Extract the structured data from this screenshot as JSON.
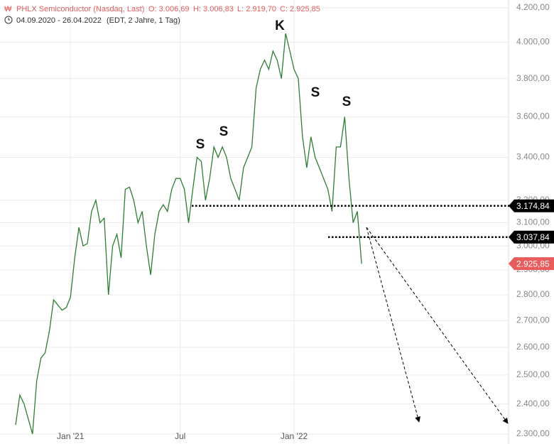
{
  "chart_data": {
    "type": "line",
    "title": "PHLX Semiconductor (Nasdaq, Last)",
    "ohlc_header": [
      "O: 3.006,69",
      "H: 3.006,83",
      "L: 2.919,70",
      "C: 2.925,85"
    ],
    "date_range": "04.09.2020 - 26.04.2022",
    "range_note": "(EDT, 2 Jahre, 1 Tag)",
    "categories": [
      null,
      null,
      null,
      null,
      null,
      null,
      null,
      null,
      null,
      null,
      null,
      null,
      null,
      "Jan '21",
      null,
      null,
      null,
      null,
      null,
      null,
      null,
      null,
      null,
      null,
      null,
      null,
      null,
      null,
      null,
      null,
      null,
      null,
      null,
      null,
      null,
      null,
      null,
      null,
      null,
      "Jul",
      null,
      null,
      null,
      null,
      null,
      null,
      null,
      null,
      null,
      null,
      null,
      null,
      null,
      null,
      null,
      null,
      null,
      null,
      null,
      null,
      null,
      null,
      null,
      null,
      null,
      null,
      "Jan '22",
      null,
      null,
      null,
      null,
      null,
      null,
      null,
      null,
      null,
      null,
      null,
      null,
      null,
      null,
      null,
      null
    ],
    "series": [
      {
        "name": "PHLX Semiconductor",
        "color": "#2e7d32",
        "values": [
          2330,
          2430,
          2400,
          2350,
          2300,
          2480,
          2560,
          2580,
          2660,
          2780,
          2760,
          2740,
          2750,
          2790,
          2950,
          3080,
          3000,
          3010,
          3150,
          3200,
          3100,
          3120,
          2800,
          3000,
          3050,
          2950,
          3250,
          3260,
          3200,
          3100,
          3150,
          3000,
          2880,
          3050,
          3150,
          3180,
          3150,
          3250,
          3300,
          3300,
          3250,
          3100,
          3250,
          3400,
          3380,
          3200,
          3300,
          3450,
          3400,
          3450,
          3400,
          3300,
          3250,
          3200,
          3350,
          3400,
          3450,
          3750,
          3850,
          3900,
          3850,
          3950,
          3900,
          3800,
          4050,
          3950,
          3850,
          3800,
          3500,
          3350,
          3500,
          3400,
          3350,
          3300,
          3250,
          3150,
          3450,
          3450,
          3600,
          3300,
          3100,
          3150,
          2925.85
        ]
      }
    ],
    "last_label": "2.925,85",
    "levels": [
      {
        "value": 3174.84,
        "label": "3.174,84"
      },
      {
        "value": 3037.84,
        "label": "3.037,84"
      }
    ],
    "annotations": [
      "S",
      "S",
      "K",
      "S",
      "S"
    ],
    "ylim": [
      2268,
      4246
    ],
    "log_scale": true,
    "yticks": [
      {
        "value": 2300,
        "label": "2.300,00"
      },
      {
        "value": 2400,
        "label": "2.400,00"
      },
      {
        "value": 2500,
        "label": "2.500,00"
      },
      {
        "value": 2600,
        "label": "2.600,00"
      },
      {
        "value": 2700,
        "label": "2.700,00"
      },
      {
        "value": 2800,
        "label": "2.800,00"
      },
      {
        "value": 2900,
        "label": "2.900,00"
      },
      {
        "value": 3000,
        "label": "3.000,00"
      },
      {
        "value": 3100,
        "label": "3.100,00"
      },
      {
        "value": 3200,
        "label": "3.200,00"
      },
      {
        "value": 3400,
        "label": "3.400,00"
      },
      {
        "value": 3600,
        "label": "3.600,00"
      },
      {
        "value": 3800,
        "label": "3.800,00"
      },
      {
        "value": 4000,
        "label": "4.000,00"
      },
      {
        "value": 4200,
        "label": "4.200,00"
      }
    ],
    "grid": true
  }
}
